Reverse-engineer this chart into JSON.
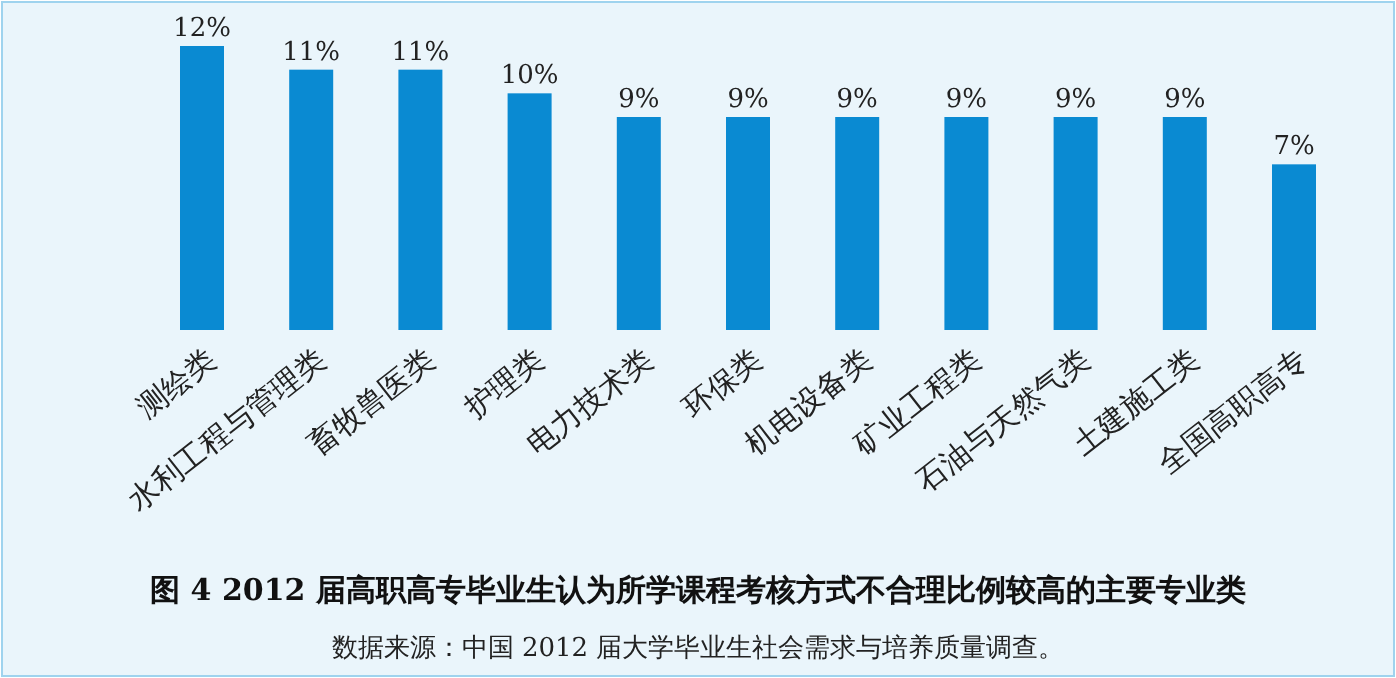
{
  "chart_data": {
    "type": "bar",
    "title": "图 4 2012 届高职高专毕业生认为所学课程考核方式不合理比例较高的主要专业类",
    "categories": [
      "测绘类",
      "水利工程与管理类",
      "畜牧兽医类",
      "护理类",
      "电力技术类",
      "环保类",
      "机电设备类",
      "矿业工程类",
      "石油与天然气类",
      "土建施工类",
      "全国高职高专"
    ],
    "values": [
      12,
      11,
      11,
      10,
      9,
      9,
      9,
      9,
      9,
      9,
      7
    ],
    "value_labels": [
      "12%",
      "11%",
      "11%",
      "10%",
      "9%",
      "9%",
      "9%",
      "9%",
      "9%",
      "9%",
      "7%"
    ],
    "color": "#0a8ad2",
    "annotations": [
      "数据来源：中国 2012 届大学毕业生社会需求与培养质量调查。"
    ]
  }
}
